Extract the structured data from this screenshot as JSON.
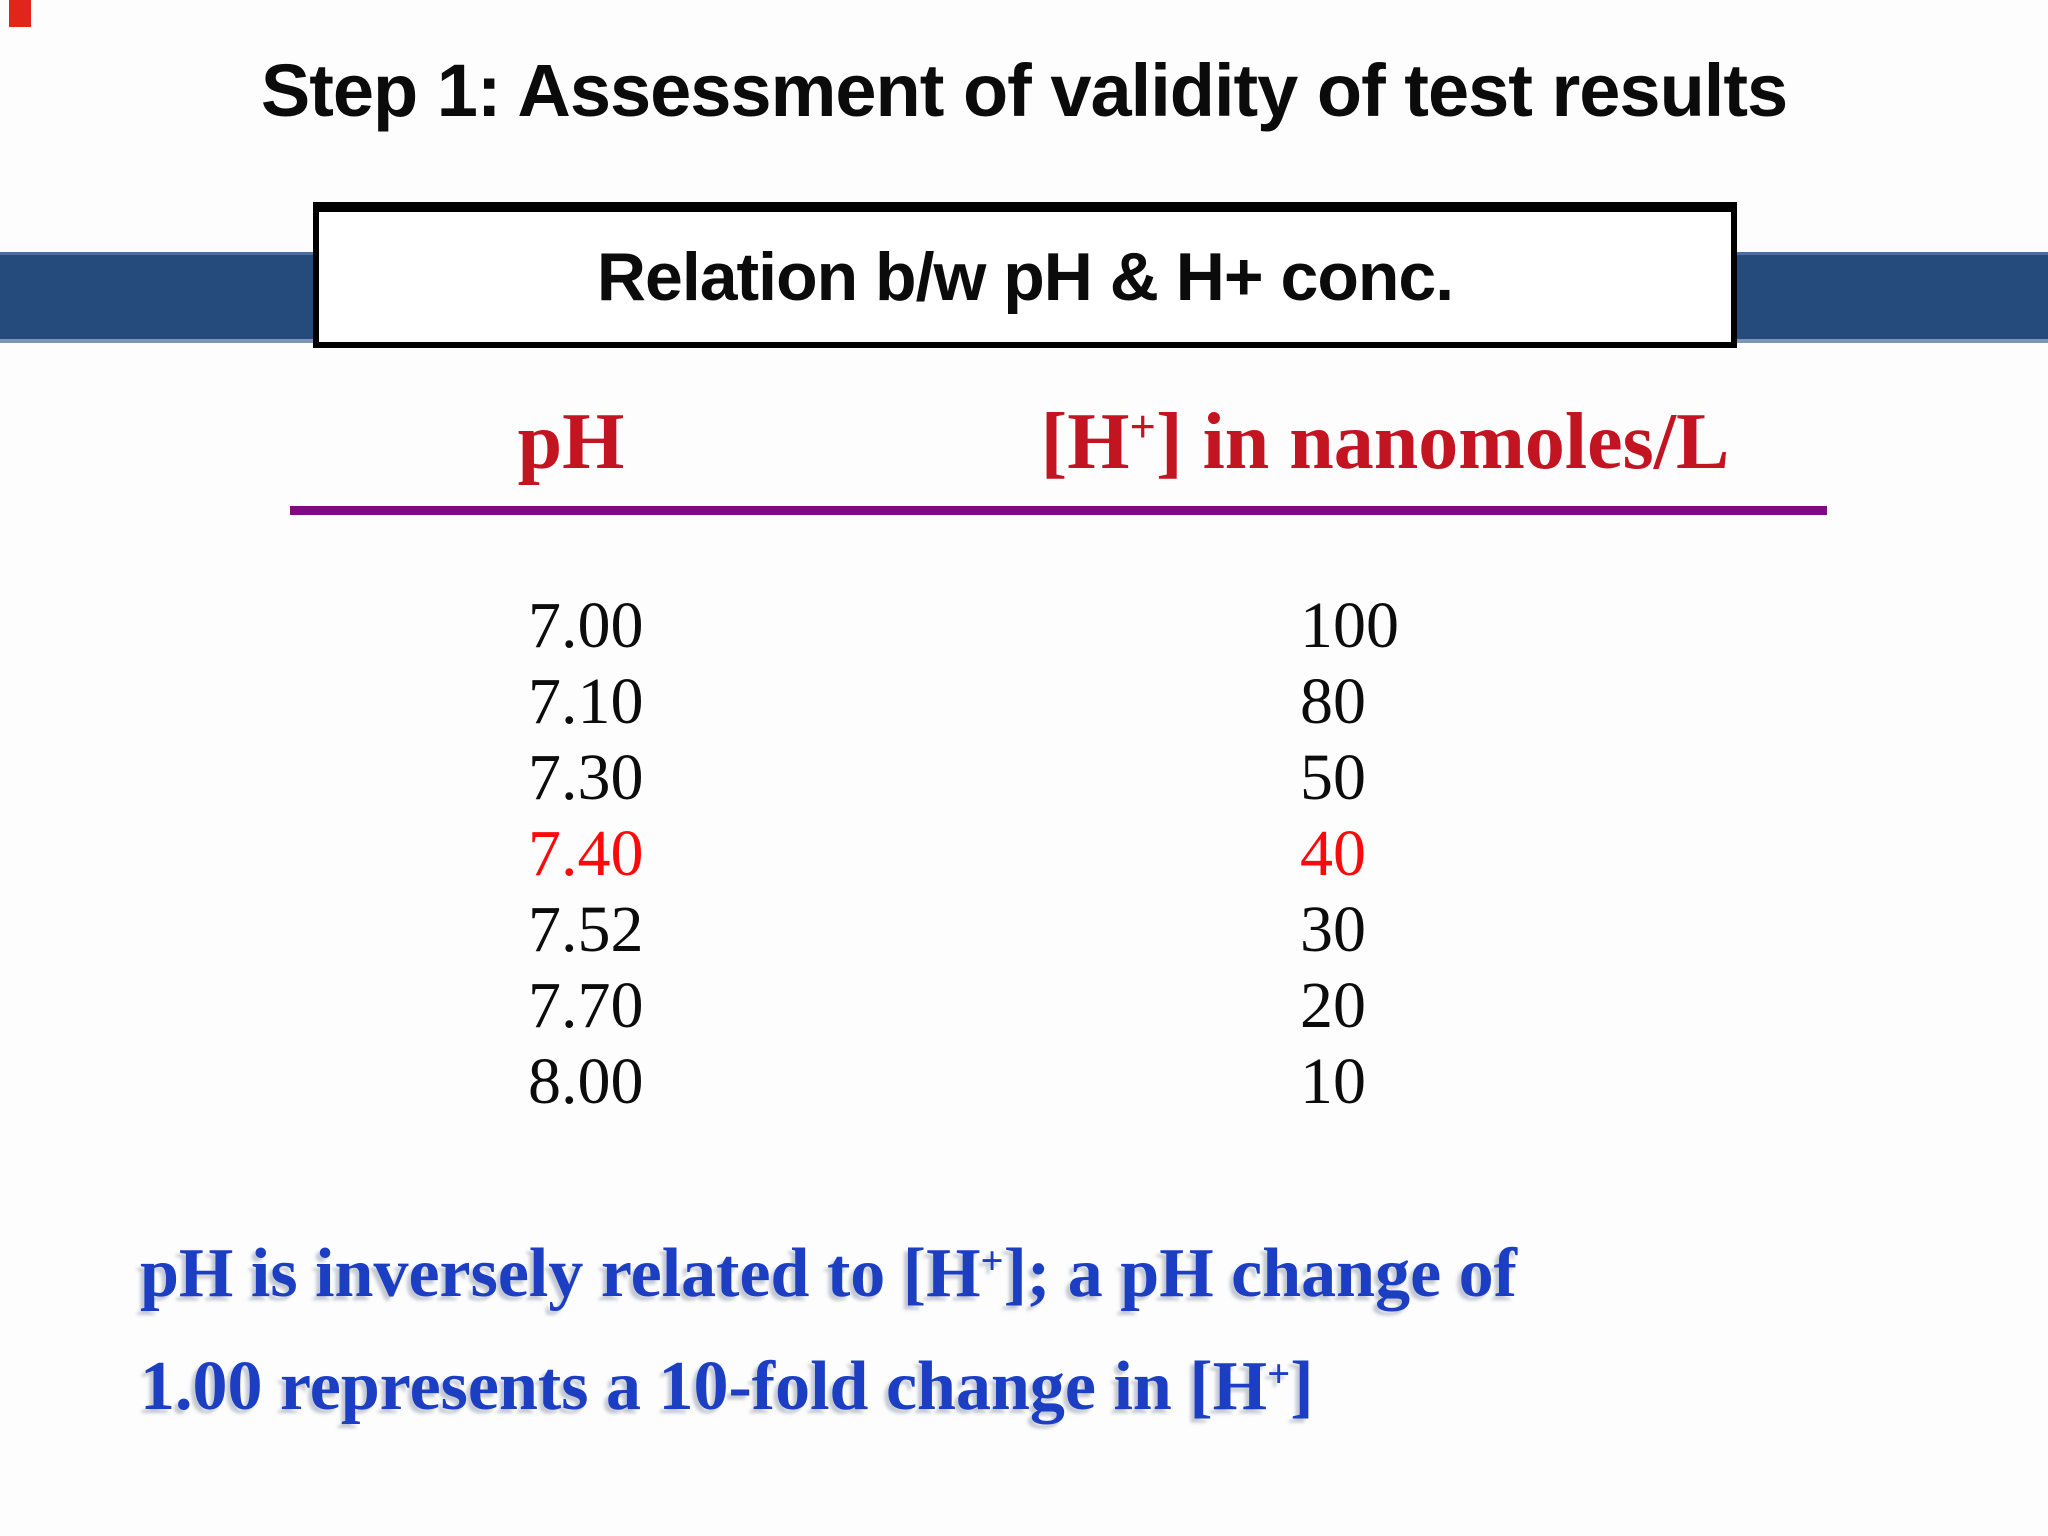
{
  "slide": {
    "title": "Step 1: Assessment of validity of test results",
    "banner": {
      "label": "Relation b/w pH & H+ conc."
    },
    "table": {
      "col1_header": "pH",
      "col2_header_parts": {
        "prefix": "[H",
        "sup": "+",
        "suffix": "] in nanomoles/L"
      },
      "rows": [
        {
          "ph": "7.00",
          "conc": "100",
          "highlight": false
        },
        {
          "ph": "7.10",
          "conc": "80",
          "highlight": false
        },
        {
          "ph": "7.30",
          "conc": "50",
          "highlight": false
        },
        {
          "ph": "7.40",
          "conc": "40",
          "highlight": true
        },
        {
          "ph": "7.52",
          "conc": "30",
          "highlight": false
        },
        {
          "ph": "7.70",
          "conc": "20",
          "highlight": false
        },
        {
          "ph": "8.00",
          "conc": "10",
          "highlight": false
        }
      ]
    },
    "note": {
      "lines": [
        [
          {
            "t": "pH is inversely related to [H"
          },
          {
            "t": "+",
            "sup": true
          },
          {
            "t": "]; a pH change of"
          }
        ],
        [
          {
            "t": "1.00 represents a 10-fold change in [H"
          },
          {
            "t": "+",
            "sup": true
          },
          {
            "t": "]"
          }
        ]
      ]
    },
    "colors": {
      "bar_blue": "#254b7d",
      "header_red": "#c31421",
      "highlight_red": "#fa0a0a",
      "rule_purple": "#7d0c80",
      "note_blue": "#1b3ec3",
      "corner_red": "#e1251b"
    }
  }
}
